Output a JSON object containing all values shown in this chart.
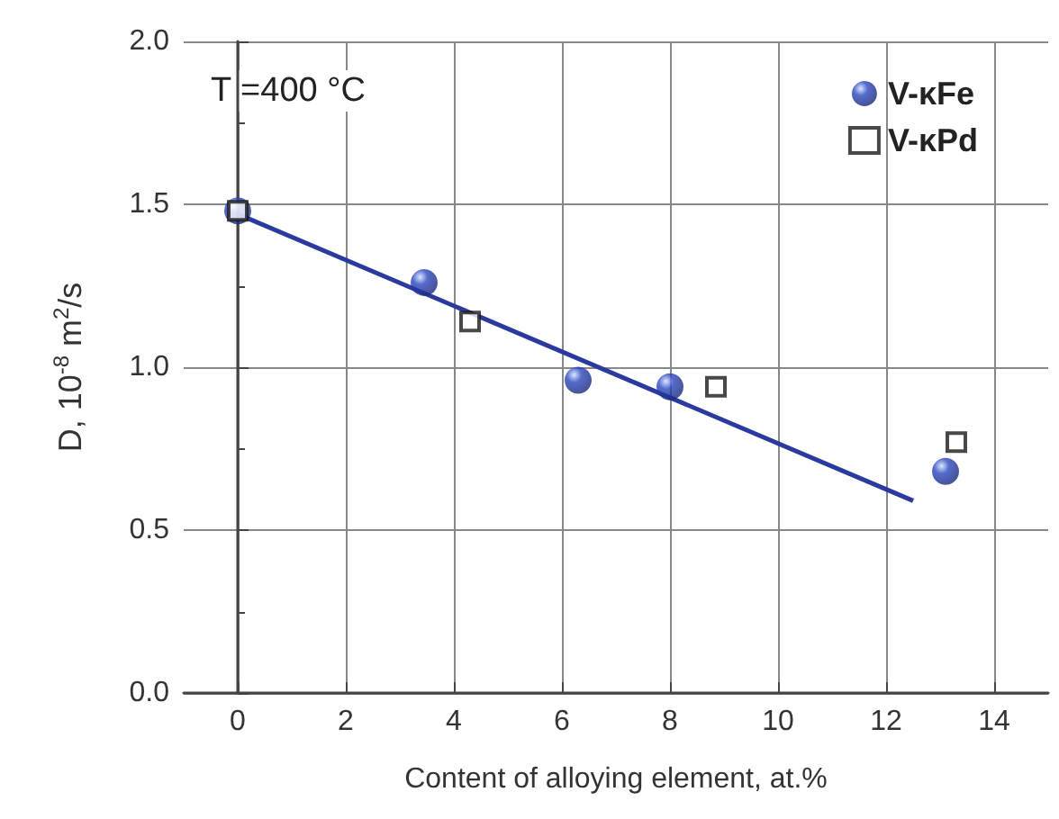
{
  "chart_data": {
    "type": "scatter",
    "xlabel": "Content of alloying element, at.%",
    "ylabel": "D, 10$^{-8}$ m$^{2}$/s",
    "annotations": [
      "T =400 °C"
    ],
    "series": [
      {
        "name": "V-κFe",
        "color": "#2a45c0",
        "marker": "circle",
        "x": [
          0,
          3.45,
          6.3,
          8.0,
          13.1
        ],
        "values": [
          1.48,
          1.26,
          0.96,
          0.94,
          0.68
        ]
      },
      {
        "name": "V-κPd",
        "color": "#1a1a1a",
        "marker": "square",
        "x": [
          0,
          4.3,
          8.85,
          13.3
        ],
        "values": [
          1.48,
          1.14,
          0.94,
          0.77
        ]
      },
      {
        "type": "line",
        "color": "#2b3a9e",
        "marker": "none",
        "x": [
          0,
          12.5
        ],
        "values": [
          1.47,
          0.59
        ]
      }
    ],
    "xlim": [
      -1,
      15
    ],
    "xticks": [
      0,
      2,
      4,
      6,
      8,
      10,
      12,
      14
    ],
    "ylim": [
      0,
      2
    ],
    "yticks": [
      {
        "value": 0,
        "label": "0.0"
      },
      0.5,
      {
        "value": 1,
        "label": "1.0"
      },
      1.5,
      {
        "value": 2,
        "label": "2.0"
      }
    ],
    "grid": true,
    "legend": "top right"
  }
}
